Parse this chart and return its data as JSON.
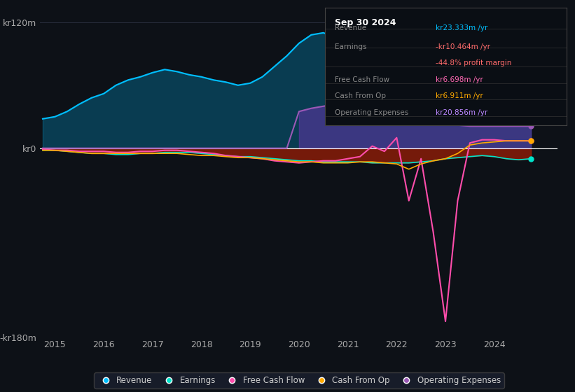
{
  "bg_color": "#0d1117",
  "plot_bg_color": "#0d1117",
  "grid_color": "#2a3040",
  "ylim": [
    -180,
    130
  ],
  "yticks": [
    -180,
    0,
    120
  ],
  "ytick_labels": [
    "-kr180m",
    "kr0",
    "kr120m"
  ],
  "xlim": [
    2014.7,
    2025.3
  ],
  "xticks": [
    2015,
    2016,
    2017,
    2018,
    2019,
    2020,
    2021,
    2022,
    2023,
    2024
  ],
  "revenue_color": "#00bfff",
  "earnings_color": "#00e5cc",
  "fcf_color": "#ff4dac",
  "cashfromop_color": "#ffaa00",
  "opex_color": "#9b59b6",
  "info_box": {
    "date": "Sep 30 2024",
    "revenue_val": "kr23.333m /yr",
    "earnings_val": "-kr10.464m /yr",
    "profit_margin": "-44.8% profit margin",
    "fcf_val": "kr6.698m /yr",
    "cashfromop_val": "kr6.911m /yr",
    "opex_val": "kr20.856m /yr",
    "revenue_color": "#00bfff",
    "earnings_val_color": "#ff6b6b",
    "profit_margin_color": "#ff6b6b",
    "fcf_color": "#ff69b4",
    "cashfromop_color": "#ffaa00",
    "opex_color": "#bb88ff"
  },
  "years": [
    2014.75,
    2015.0,
    2015.25,
    2015.5,
    2015.75,
    2016.0,
    2016.25,
    2016.5,
    2016.75,
    2017.0,
    2017.25,
    2017.5,
    2017.75,
    2018.0,
    2018.25,
    2018.5,
    2018.75,
    2019.0,
    2019.25,
    2019.5,
    2019.75,
    2020.0,
    2020.25,
    2020.5,
    2020.75,
    2021.0,
    2021.25,
    2021.5,
    2021.75,
    2022.0,
    2022.25,
    2022.5,
    2022.75,
    2023.0,
    2023.25,
    2023.5,
    2023.75,
    2024.0,
    2024.25,
    2024.5,
    2024.75
  ],
  "revenue": [
    28,
    30,
    35,
    42,
    48,
    52,
    60,
    65,
    68,
    72,
    75,
    73,
    70,
    68,
    65,
    63,
    60,
    62,
    68,
    78,
    88,
    100,
    108,
    110,
    105,
    95,
    88,
    80,
    72,
    60,
    55,
    50,
    45,
    38,
    32,
    28,
    25,
    24,
    24,
    23,
    23
  ],
  "earnings": [
    -2,
    -2,
    -3,
    -4,
    -5,
    -5,
    -6,
    -6,
    -5,
    -5,
    -4,
    -4,
    -4,
    -5,
    -6,
    -7,
    -8,
    -8,
    -9,
    -10,
    -11,
    -12,
    -12,
    -13,
    -13,
    -13,
    -13,
    -14,
    -14,
    -14,
    -14,
    -13,
    -12,
    -10,
    -9,
    -8,
    -7,
    -8,
    -10,
    -11,
    -10
  ],
  "fcf": [
    -1,
    -2,
    -2,
    -3,
    -3,
    -3,
    -4,
    -4,
    -3,
    -3,
    -2,
    -2,
    -3,
    -4,
    -5,
    -7,
    -8,
    -9,
    -10,
    -12,
    -13,
    -14,
    -13,
    -12,
    -12,
    -10,
    -8,
    2,
    -3,
    10,
    -50,
    -10,
    -80,
    -165,
    -50,
    5,
    8,
    8,
    7,
    7,
    7
  ],
  "cashfromop": [
    -2,
    -2,
    -3,
    -4,
    -5,
    -5,
    -5,
    -5,
    -5,
    -5,
    -5,
    -5,
    -6,
    -7,
    -7,
    -8,
    -9,
    -9,
    -10,
    -11,
    -12,
    -13,
    -13,
    -14,
    -14,
    -14,
    -13,
    -13,
    -14,
    -15,
    -20,
    -15,
    -12,
    -10,
    -5,
    3,
    5,
    6,
    7,
    7,
    7
  ],
  "opex": [
    0,
    0,
    0,
    0,
    0,
    0,
    0,
    0,
    0,
    0,
    0,
    0,
    0,
    0,
    0,
    0,
    0,
    0,
    0,
    0,
    0,
    35,
    38,
    40,
    42,
    45,
    42,
    40,
    38,
    35,
    30,
    28,
    26,
    24,
    22,
    21,
    21,
    21,
    21,
    21,
    21
  ]
}
